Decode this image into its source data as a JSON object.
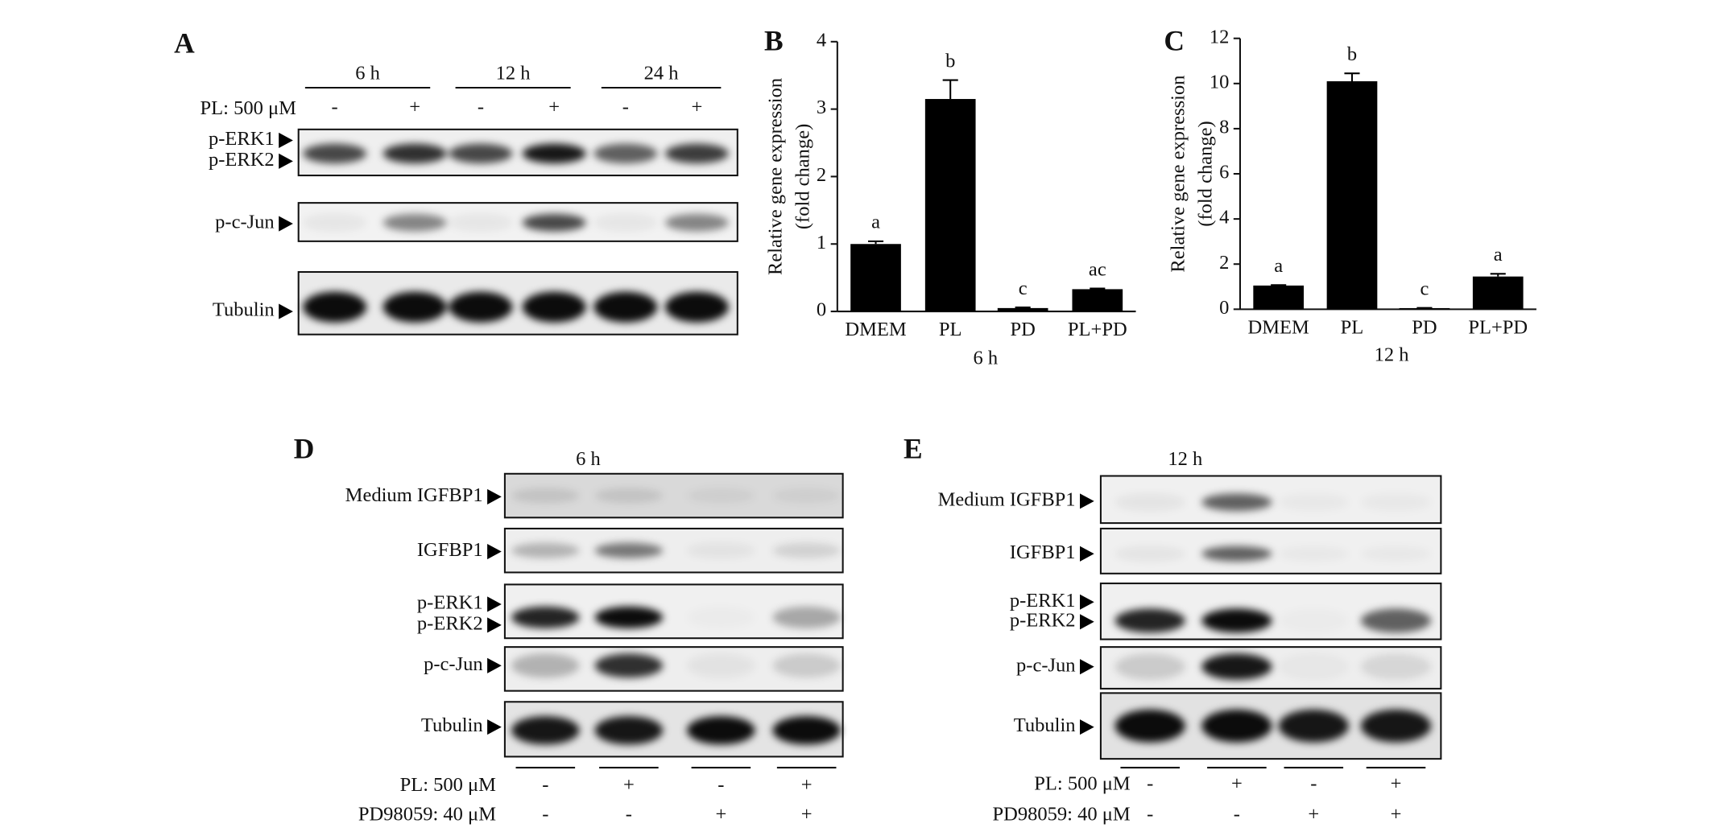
{
  "panels": {
    "A": {
      "letter": "A",
      "time_points": [
        "6 h",
        "12 h",
        "24 h"
      ],
      "treatment_label": "PL: 500 μM",
      "treatment_signs": [
        "-",
        "+",
        "-",
        "+",
        "-",
        "+"
      ],
      "rows": [
        {
          "labels": [
            "p-ERK1",
            "p-ERK2"
          ]
        },
        {
          "labels": [
            "p-c-Jun"
          ]
        },
        {
          "labels": [
            "Tubulin"
          ]
        }
      ]
    },
    "D": {
      "letter": "D",
      "time_point": "6 h",
      "rows": [
        {
          "labels": [
            "Medium IGFBP1"
          ]
        },
        {
          "labels": [
            "IGFBP1"
          ]
        },
        {
          "labels": [
            "p-ERK1",
            "p-ERK2"
          ]
        },
        {
          "labels": [
            "p-c-Jun"
          ]
        },
        {
          "labels": [
            "Tubulin"
          ]
        }
      ],
      "treatments": [
        {
          "label": "PL: 500 μM",
          "signs": [
            "-",
            "+",
            "-",
            "+"
          ]
        },
        {
          "label": "PD98059: 40 μM",
          "signs": [
            "-",
            "-",
            "+",
            "+"
          ]
        }
      ]
    },
    "E": {
      "letter": "E",
      "time_point": "12 h",
      "rows": [
        {
          "labels": [
            "Medium IGFBP1"
          ]
        },
        {
          "labels": [
            "IGFBP1"
          ]
        },
        {
          "labels": [
            "p-ERK1",
            "p-ERK2"
          ]
        },
        {
          "labels": [
            "p-c-Jun"
          ]
        },
        {
          "labels": [
            "Tubulin"
          ]
        }
      ],
      "treatments": [
        {
          "label": "PL: 500 μM",
          "signs": [
            "-",
            "+",
            "-",
            "+"
          ]
        },
        {
          "label": "PD98059: 40 μM",
          "signs": [
            "-",
            "-",
            "+",
            "+"
          ]
        }
      ]
    }
  },
  "chart_data": [
    {
      "type": "bar",
      "panel_letter": "B",
      "ylabel": [
        "Relative gene expression",
        "(fold change)"
      ],
      "xlabel": "6 h",
      "categories": [
        "DMEM",
        "PL",
        "PD",
        "PL+PD"
      ],
      "values": [
        1.0,
        3.15,
        0.05,
        0.33
      ],
      "errors": [
        0.04,
        0.28,
        0.01,
        0.01
      ],
      "annotations": [
        "a",
        "b",
        "c",
        "ac"
      ],
      "color": "#000000",
      "ylim": [
        0,
        4
      ],
      "yticks": [
        0,
        1,
        2,
        3,
        4
      ]
    },
    {
      "type": "bar",
      "panel_letter": "C",
      "ylabel": [
        "Relative gene expression",
        "(fold change)"
      ],
      "xlabel": "12 h",
      "categories": [
        "DMEM",
        "PL",
        "PD",
        "PL+PD"
      ],
      "values": [
        1.05,
        10.1,
        0.05,
        1.45
      ],
      "errors": [
        0.02,
        0.35,
        0.01,
        0.12
      ],
      "annotations": [
        "a",
        "b",
        "c",
        "a"
      ],
      "color": "#000000",
      "ylim": [
        0,
        12
      ],
      "yticks": [
        0,
        2,
        4,
        6,
        8,
        10,
        12
      ]
    }
  ]
}
